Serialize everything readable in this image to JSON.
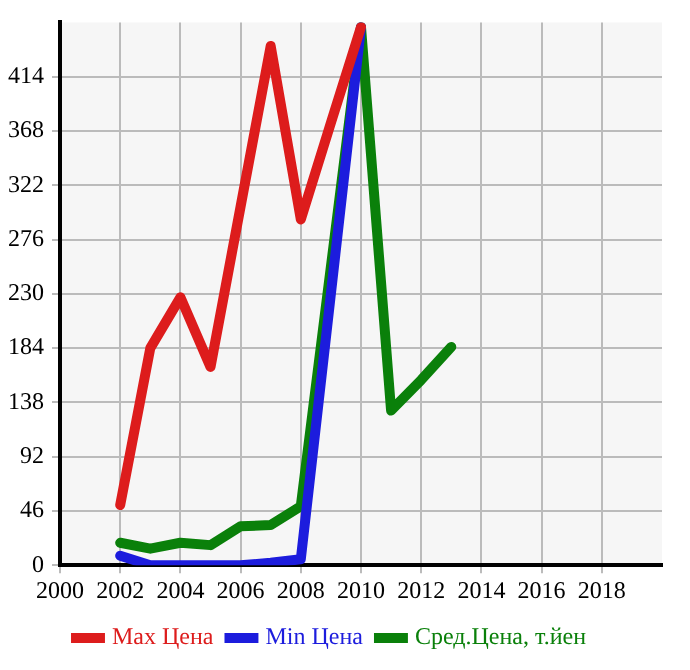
{
  "chart_data": {
    "type": "line",
    "x": [
      2002,
      2003,
      2004,
      2005,
      2006,
      2007,
      2008,
      2009,
      2010,
      2011,
      2012,
      2013
    ],
    "series": [
      {
        "name": "Max Цена",
        "color": "#dd1c1c",
        "values": [
          51,
          184,
          227,
          168,
          304,
          440,
          293,
          375,
          456,
          null,
          null,
          null
        ]
      },
      {
        "name": "Min Цена",
        "color": "#1c1cdd",
        "values": [
          8,
          0,
          0,
          0,
          0,
          2,
          5,
          230,
          456,
          null,
          null,
          null
        ]
      },
      {
        "name": "Сред.Цена, т.йен",
        "color": "#0a800a",
        "values": [
          19,
          14,
          19,
          17,
          33,
          34,
          50,
          253,
          456,
          131,
          157,
          185
        ]
      }
    ],
    "xlim": [
      2000,
      2020
    ],
    "xticks": [
      2000,
      2002,
      2004,
      2006,
      2008,
      2010,
      2012,
      2014,
      2016,
      2018
    ],
    "ylim": [
      0,
      460
    ],
    "yticks": [
      0,
      46,
      92,
      138,
      184,
      230,
      276,
      322,
      368,
      414
    ],
    "grid": true,
    "legend": "bottom",
    "marker": "none",
    "line_style": "solid"
  }
}
